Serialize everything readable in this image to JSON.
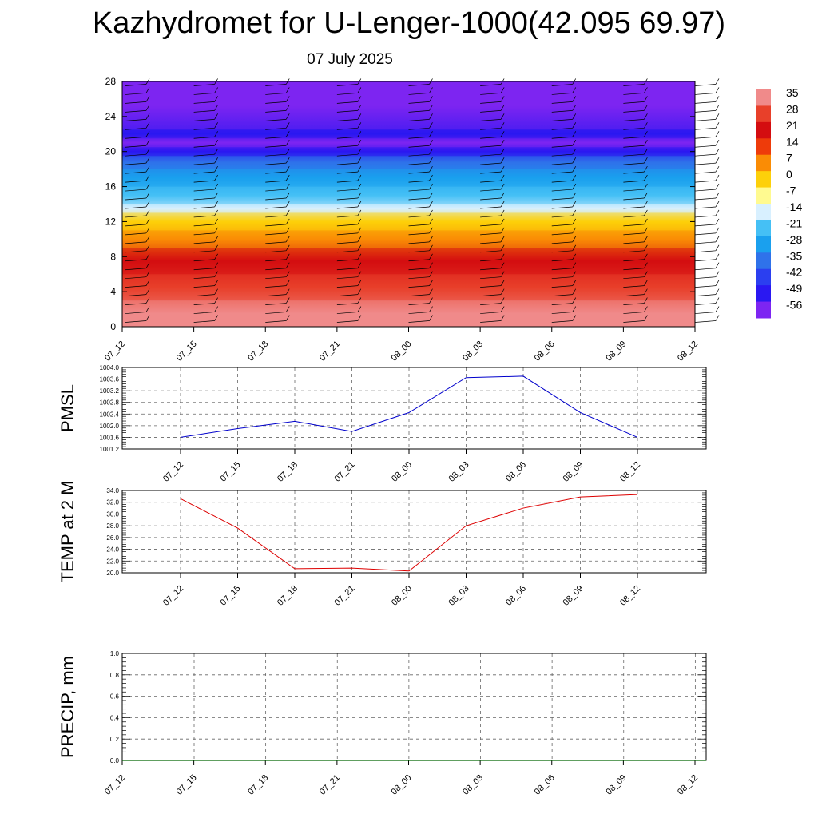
{
  "title": "Kazhydromet for U-Lenger-1000(42.095 69.97)",
  "subtitle": "07 July 2025",
  "chart_data": [
    {
      "type": "heatmap",
      "name": "temperature-cross-section",
      "x_categories": [
        "07_12",
        "07_15",
        "07_18",
        "07_21",
        "08_00",
        "08_03",
        "08_06",
        "08_09",
        "08_12"
      ],
      "yticks": [
        0,
        4,
        8,
        12,
        16,
        20,
        24,
        28
      ],
      "ylim": [
        0,
        28
      ],
      "bands": [
        {
          "y0": 0,
          "y1": 3,
          "value": 32
        },
        {
          "y0": 3,
          "y1": 6,
          "value": 28
        },
        {
          "y0": 6,
          "y1": 9,
          "value": 21
        },
        {
          "y0": 9,
          "y1": 11,
          "value": 10
        },
        {
          "y0": 11,
          "y1": 13,
          "value": 0
        },
        {
          "y0": 13,
          "y1": 14,
          "value": -14
        },
        {
          "y0": 14,
          "y1": 16,
          "value": -21
        },
        {
          "y0": 16,
          "y1": 18,
          "value": -28
        },
        {
          "y0": 18,
          "y1": 19.5,
          "value": -35
        },
        {
          "y0": 19.5,
          "y1": 20.5,
          "value": -49
        },
        {
          "y0": 20.5,
          "y1": 21.5,
          "value": -56
        },
        {
          "y0": 21.5,
          "y1": 22.5,
          "value": -49
        },
        {
          "y0": 22.5,
          "y1": 28,
          "value": -56
        }
      ],
      "colorbar": {
        "labels": [
          "35",
          "28",
          "21",
          "14",
          "7",
          "0",
          "-7",
          "-14",
          "-21",
          "-28",
          "-35",
          "-42",
          "-49",
          "-56"
        ],
        "colors": [
          "#f08a8a",
          "#e8402a",
          "#d40d10",
          "#ee3b0a",
          "#fa8c05",
          "#fdd00a",
          "#fffa90",
          "#d8f0ff",
          "#45c0f5",
          "#1aa0ee",
          "#2f72ea",
          "#2b3ff0",
          "#2a18f2",
          "#7d25f2"
        ]
      },
      "grid": false
    },
    {
      "type": "line",
      "name": "pmsl",
      "ylabel": "PMSL",
      "categories": [
        "07_12",
        "07_15",
        "07_18",
        "07_21",
        "08_00",
        "08_03",
        "08_06",
        "08_09",
        "08_12"
      ],
      "values": [
        1001.6,
        1001.9,
        1002.15,
        1001.8,
        1002.45,
        1003.65,
        1003.7,
        1002.45,
        1001.6
      ],
      "ylim": [
        1001.2,
        1004.0
      ],
      "yticks": [
        "1001.2",
        "1001.6",
        "1002.0",
        "1002.4",
        "1002.8",
        "1003.2",
        "1003.6",
        "1004.0"
      ],
      "color": "#0000cc",
      "grid": true
    },
    {
      "type": "line",
      "name": "temp-2m",
      "ylabel": "TEMP at 2 M",
      "categories": [
        "07_12",
        "07_15",
        "07_18",
        "07_21",
        "08_00",
        "08_03",
        "08_06",
        "08_09",
        "08_12"
      ],
      "values": [
        32.6,
        27.6,
        20.7,
        20.8,
        20.3,
        28.0,
        31.0,
        32.9,
        33.3
      ],
      "ylim": [
        20.0,
        34.0
      ],
      "yticks": [
        "20.0",
        "22.0",
        "24.0",
        "26.0",
        "28.0",
        "30.0",
        "32.0",
        "34.0"
      ],
      "color": "#dd0000",
      "grid": true
    },
    {
      "type": "line",
      "name": "precip",
      "ylabel": "PRECIP, mm",
      "categories": [
        "07_12",
        "07_15",
        "07_18",
        "07_21",
        "08_00",
        "08_03",
        "08_06",
        "08_09",
        "08_12"
      ],
      "values": [
        0,
        0,
        0,
        0,
        0,
        0,
        0,
        0,
        0
      ],
      "ylim": [
        0.0,
        1.0
      ],
      "yticks": [
        "0.0",
        "0.2",
        "0.4",
        "0.6",
        "0.8",
        "1.0"
      ],
      "color": "#006600",
      "grid": true
    }
  ]
}
